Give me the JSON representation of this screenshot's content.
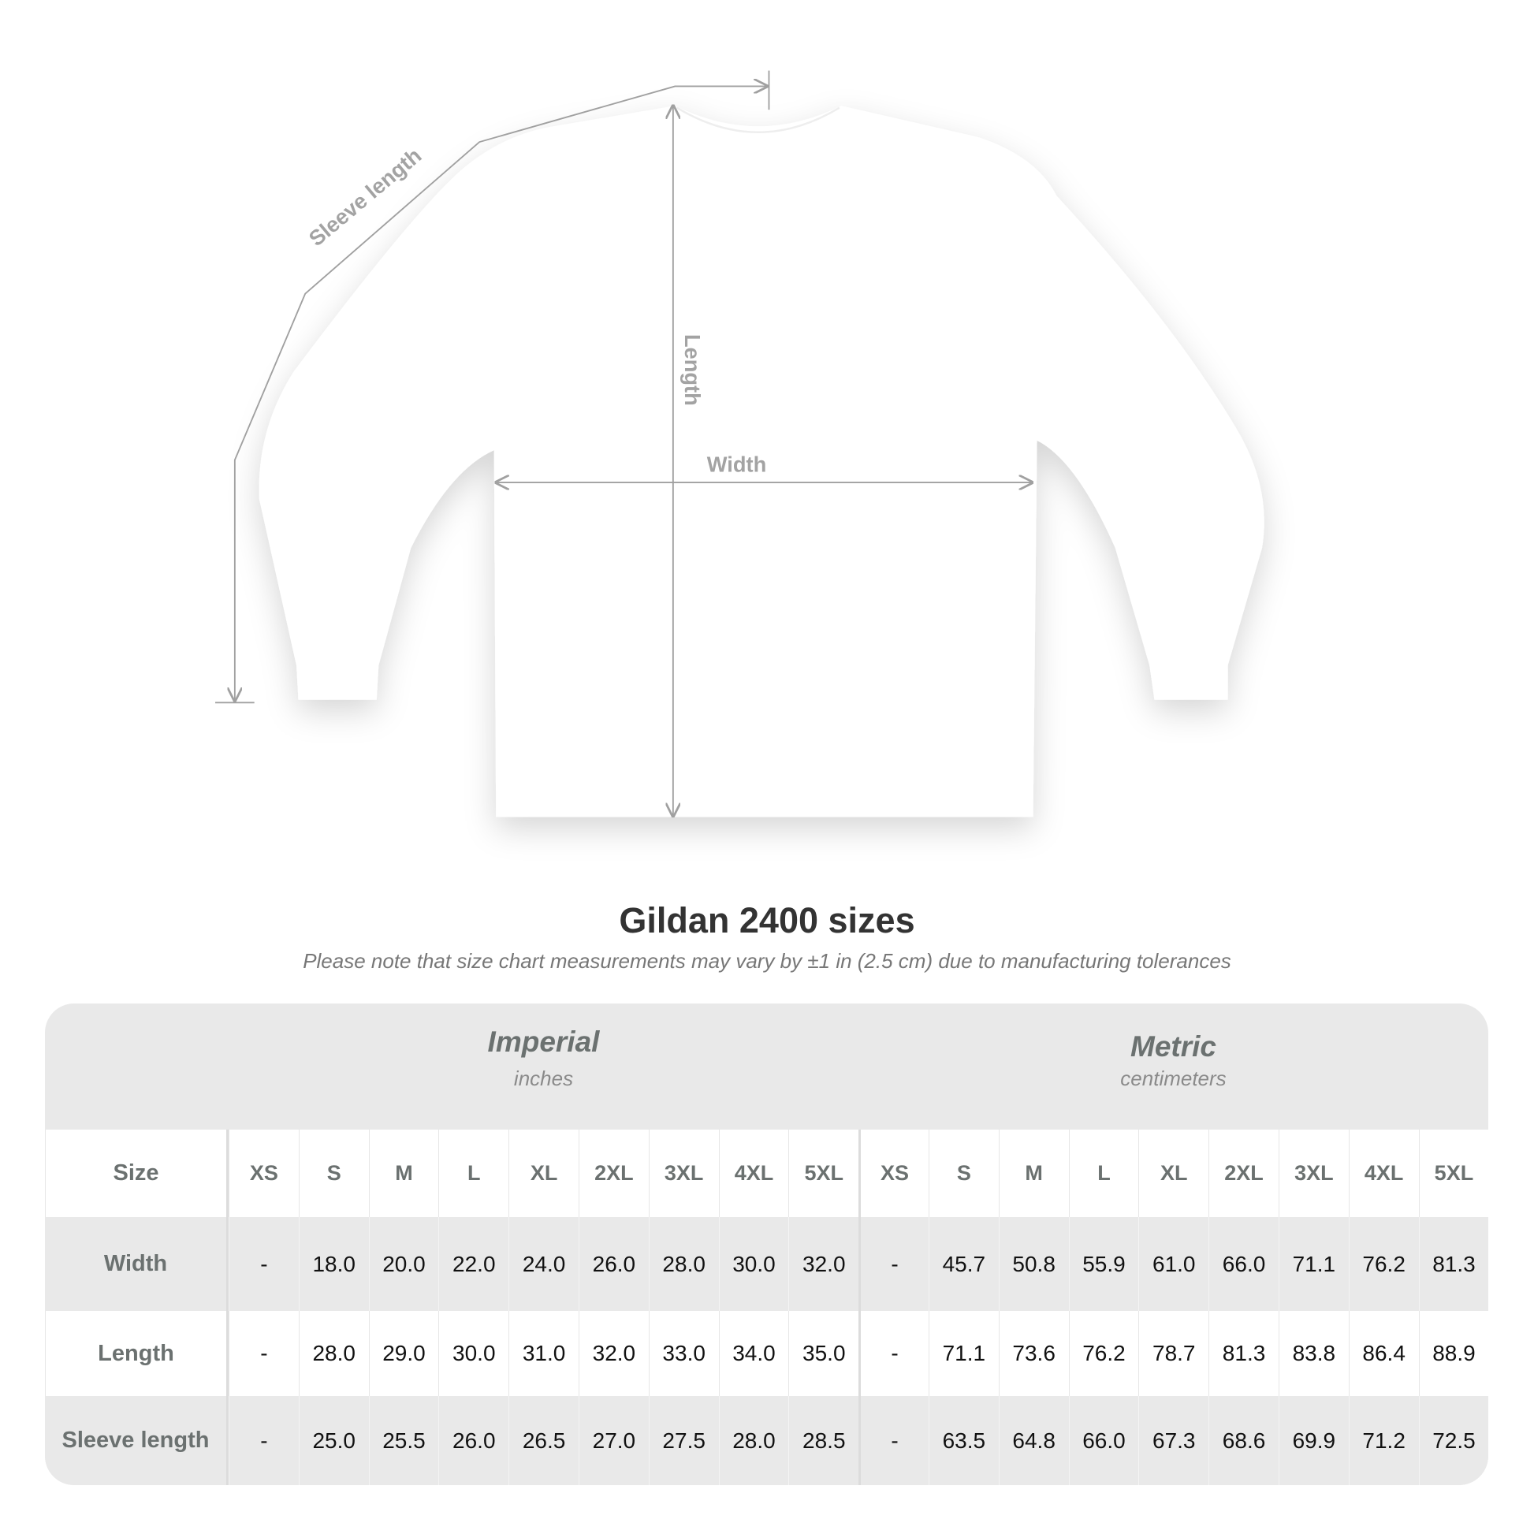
{
  "diagram": {
    "sleeve_label": "Sleeve length",
    "length_label": "Length",
    "width_label": "Width",
    "line_color": "#a0a0a0"
  },
  "title": "Gildan 2400 sizes",
  "note": "Please note that size chart measurements may vary by ±1 in (2.5 cm) due to manufacturing tolerances",
  "table": {
    "imperial": {
      "label": "Imperial",
      "unit": "inches"
    },
    "metric": {
      "label": "Metric",
      "unit": "centimeters"
    },
    "size_label": "Size",
    "imperial_sizes": [
      "XS",
      "S",
      "M",
      "L",
      "XL",
      "2XL",
      "3XL",
      "4XL",
      "5XL"
    ],
    "metric_sizes": [
      "XS",
      "S",
      "M",
      "L",
      "XL",
      "2XL",
      "3XL",
      "4XL",
      "5XL"
    ],
    "rows": [
      {
        "label": "Width",
        "imperial": [
          "-",
          "18.0",
          "20.0",
          "22.0",
          "24.0",
          "26.0",
          "28.0",
          "30.0",
          "32.0"
        ],
        "metric": [
          "-",
          "45.7",
          "50.8",
          "55.9",
          "61.0",
          "66.0",
          "71.1",
          "76.2",
          "81.3"
        ]
      },
      {
        "label": "Length",
        "imperial": [
          "-",
          "28.0",
          "29.0",
          "30.0",
          "31.0",
          "32.0",
          "33.0",
          "34.0",
          "35.0"
        ],
        "metric": [
          "-",
          "71.1",
          "73.6",
          "76.2",
          "78.7",
          "81.3",
          "83.8",
          "86.4",
          "88.9"
        ]
      },
      {
        "label": "Sleeve length",
        "imperial": [
          "-",
          "25.0",
          "25.5",
          "26.0",
          "26.5",
          "27.0",
          "27.5",
          "28.0",
          "28.5"
        ],
        "metric": [
          "-",
          "63.5",
          "64.8",
          "66.0",
          "67.3",
          "68.6",
          "69.9",
          "71.2",
          "72.5"
        ]
      }
    ]
  }
}
